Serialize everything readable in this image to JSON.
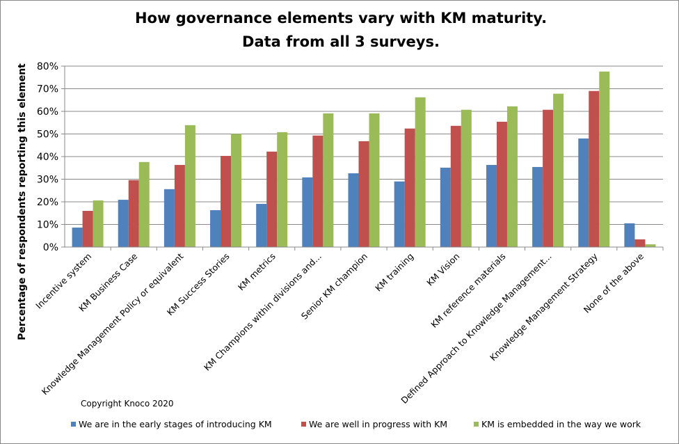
{
  "chart_data": {
    "type": "bar",
    "title_lines": [
      "How governance elements vary with KM maturity.",
      "Data from all 3 surveys."
    ],
    "ylabel": "Percentage of respondents reporting this element",
    "xlabel": "",
    "ylim": [
      0,
      80
    ],
    "ytick_step": 10,
    "ytick_labels": [
      "0%",
      "10%",
      "20%",
      "30%",
      "40%",
      "50%",
      "60%",
      "70%",
      "80%"
    ],
    "grid": true,
    "legend_position": "bottom",
    "categories": [
      "Incentive system",
      "KM Business Case",
      "Knowledge Management Policy or equivalent",
      "KM Success Stories",
      "KM metrics",
      "KM Champions within divisions and...",
      "Senior KM champion",
      "KM training",
      "KM Vision",
      "KM reference materials",
      "Defined Approach to Knowledge Management...",
      "Knowledge Management Strategy",
      "None of the above"
    ],
    "series": [
      {
        "name": "We are in the early stages of introducing KM",
        "color": "#4F81BD",
        "values": [
          8.6,
          20.9,
          25.6,
          16.3,
          19.1,
          30.8,
          32.6,
          29.0,
          35.1,
          36.3,
          35.4,
          48.0,
          10.5
        ]
      },
      {
        "name": "We are well in progress with KM",
        "color": "#C0504D",
        "values": [
          16.0,
          29.6,
          36.3,
          40.3,
          42.2,
          49.3,
          46.8,
          52.4,
          53.6,
          55.4,
          60.7,
          69.0,
          3.4
        ]
      },
      {
        "name": "KM is embedded in the way we work",
        "color": "#9BBB59",
        "values": [
          20.6,
          37.6,
          53.9,
          50.0,
          50.8,
          59.1,
          59.1,
          66.2,
          60.7,
          62.2,
          67.8,
          77.6,
          1.2
        ]
      }
    ]
  },
  "annotation": "Copyright Knoco 2020"
}
